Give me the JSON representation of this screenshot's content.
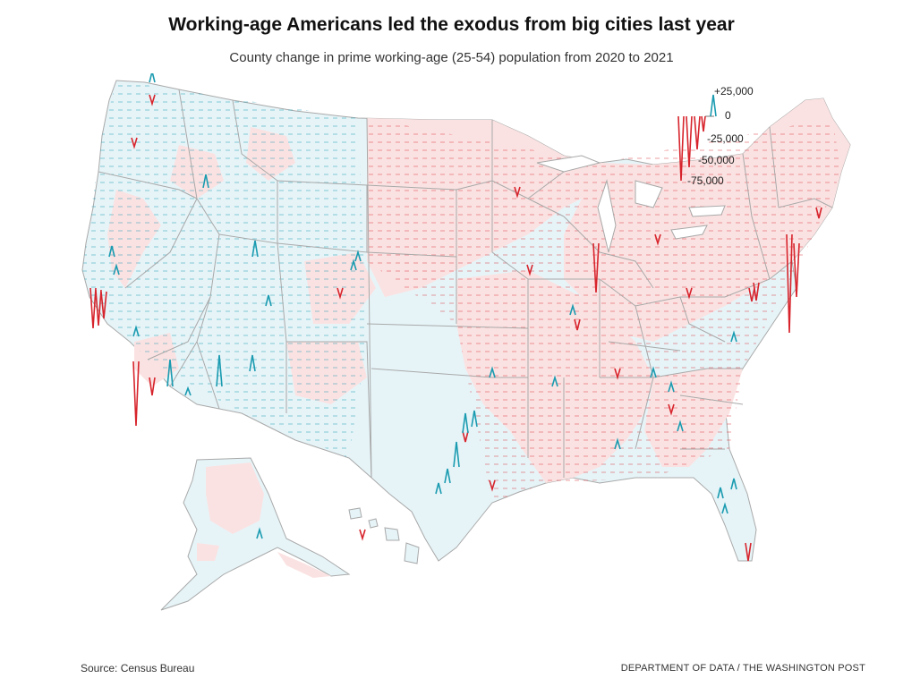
{
  "title": "Working-age Americans led the exodus from big cities last year",
  "subtitle": "County change in prime working-age (25-54) population from 2020 to 2021",
  "legend": {
    "labels": [
      "+25,000",
      "0",
      "-25,000",
      "-50,000",
      "-75,000"
    ],
    "values": [
      25000,
      0,
      -25000,
      -50000,
      -75000
    ]
  },
  "colors": {
    "gain": "#1a9bb0",
    "loss": "#d7242c",
    "gain_fill": "#e6f4f8",
    "loss_fill": "#fbe2e2",
    "state_line": "#a9a9a9"
  },
  "source": "Source: Census Bureau",
  "credit": "DEPARTMENT OF DATA / THE WASHINGTON POST"
}
